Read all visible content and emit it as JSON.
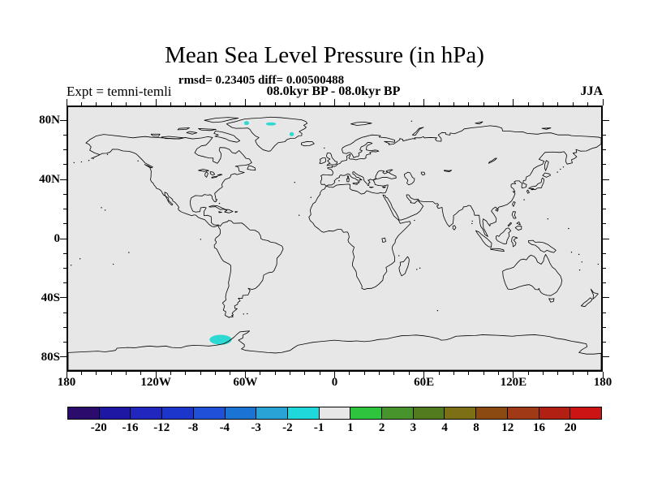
{
  "title": "Mean Sea Level Pressure (in hPa)",
  "annotations": {
    "stats": "rmsd= 0.23405 diff= 0.00500488",
    "period": "08.0kyr BP - 08.0kyr BP",
    "experiment": "Expt = temni-temli",
    "season": "JJA"
  },
  "axes": {
    "lat_labels": [
      {
        "text": "80N",
        "value": 80
      },
      {
        "text": "40N",
        "value": 40
      },
      {
        "text": "0",
        "value": 0
      },
      {
        "text": "40S",
        "value": -40
      },
      {
        "text": "80S",
        "value": -80
      }
    ],
    "lon_labels": [
      {
        "text": "180",
        "value": -180
      },
      {
        "text": "120W",
        "value": -120
      },
      {
        "text": "60W",
        "value": -60
      },
      {
        "text": "0",
        "value": 0
      },
      {
        "text": "60E",
        "value": 60
      },
      {
        "text": "120E",
        "value": 120
      },
      {
        "text": "180",
        "value": 180
      }
    ],
    "minor_tick_step_deg": 10,
    "major_lon_step_deg": 60,
    "major_lat_step_deg": 40
  },
  "colorbar": {
    "boundary_labels": [
      "-20",
      "-16",
      "-12",
      "-8",
      "-4",
      "-3",
      "-2",
      "-1",
      "1",
      "2",
      "3",
      "4",
      "8",
      "12",
      "16",
      "20"
    ],
    "segment_colors": [
      "#2B0B6B",
      "#1D17A3",
      "#2127BE",
      "#1C36CC",
      "#2050D8",
      "#1B74D4",
      "#29A3D6",
      "#1FD8DC",
      "#E7E7E7",
      "#2EC43E",
      "#47942C",
      "#527A1E",
      "#7D6F16",
      "#8B4A12",
      "#A03A16",
      "#B22013",
      "#CC1414"
    ]
  },
  "map": {
    "background": "#E7E7E7",
    "coastline_color": "#000000",
    "anomaly_fill": "#2ED9D4",
    "anomalies": [
      {
        "lon": -59.5,
        "lat": 79.1,
        "rx": 1.7,
        "ry": 1.4,
        "band": "-2 to -1"
      },
      {
        "lon": -43.0,
        "lat": 78.5,
        "rx": 3.4,
        "ry": 1.1,
        "band": "-2 to -1"
      },
      {
        "lon": -29.0,
        "lat": 71.5,
        "rx": 1.5,
        "ry": 1.4,
        "band": "-2 to -1"
      },
      {
        "lon": -77.0,
        "lat": -69.2,
        "rx": 7.5,
        "ry": 3.4,
        "band": "-2 to -1"
      }
    ]
  },
  "chart_data": {
    "type": "heatmap",
    "title": "Mean Sea Level Pressure (in hPa)",
    "subtitle": "08.0kyr BP - 08.0kyr BP",
    "season": "JJA",
    "experiment": "temni-temli",
    "rmsd": 0.23405,
    "diff": 0.00500488,
    "units": "hPa",
    "projection": "equirectangular",
    "lon_range": [
      -180,
      180
    ],
    "lat_range": [
      -90,
      90
    ],
    "levels": [
      -20,
      -16,
      -12,
      -8,
      -4,
      -3,
      -2,
      -1,
      1,
      2,
      3,
      4,
      8,
      12,
      16,
      20
    ],
    "shaded_regions": [
      {
        "lon": -59.5,
        "lat": 79.1,
        "value_band": "-2 to -1",
        "note": "small patch, NW Greenland"
      },
      {
        "lon": -43.0,
        "lat": 78.5,
        "value_band": "-2 to -1",
        "note": "small dash, N Greenland"
      },
      {
        "lon": -29.0,
        "lat": 71.5,
        "value_band": "-2 to -1",
        "note": "small dot, E Greenland"
      },
      {
        "lon": -77.0,
        "lat": -69.2,
        "value_band": "-2 to -1",
        "note": "oval patch west of Antarctic Peninsula"
      }
    ],
    "field_summary": "Difference field within -1..1 hPa (unshaded gray) nearly everywhere; only four small cyan -2..-1 hPa patches over Greenland and off West Antarctica."
  }
}
